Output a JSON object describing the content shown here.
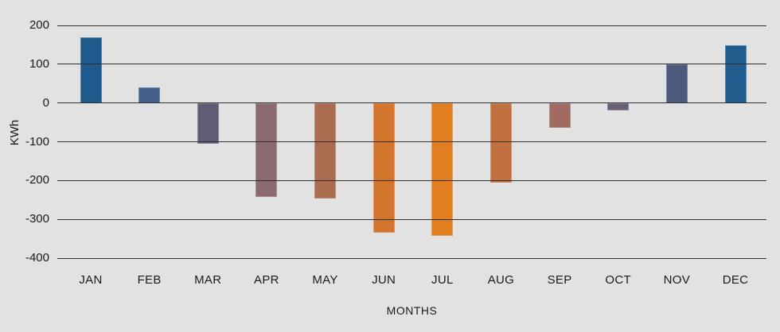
{
  "chart_data": {
    "type": "bar",
    "title": "",
    "categories": [
      "JAN",
      "FEB",
      "MAR",
      "APR",
      "MAY",
      "JUN",
      "JUL",
      "AUG",
      "SEP",
      "OCT",
      "NOV",
      "DEC"
    ],
    "values": [
      170,
      40,
      -105,
      -243,
      -246,
      -335,
      -343,
      -205,
      -65,
      -20,
      100,
      148
    ],
    "bar_colors": [
      "#1F5A8C",
      "#44608D",
      "#5F5C75",
      "#8B6B70",
      "#AC6C4F",
      "#D4752E",
      "#E07E20",
      "#C1713F",
      "#A06C62",
      "#695E73",
      "#4C5A7E",
      "#215C8E"
    ],
    "xlabel": "MONTHS",
    "ylabel": "KWh",
    "ylim": [
      -400,
      200
    ],
    "yticks": [
      200,
      100,
      0,
      -100,
      -200,
      -300,
      -400
    ],
    "ytick_labels": [
      "200",
      "100",
      "0",
      "-100",
      "-200",
      "-300",
      "-400"
    ],
    "grid": "horizontal",
    "gridlines_over_bars": true,
    "legend": "none",
    "background": "#E2E2E2",
    "gridline_color": "#303030",
    "text_color": "#1A1A1A"
  }
}
